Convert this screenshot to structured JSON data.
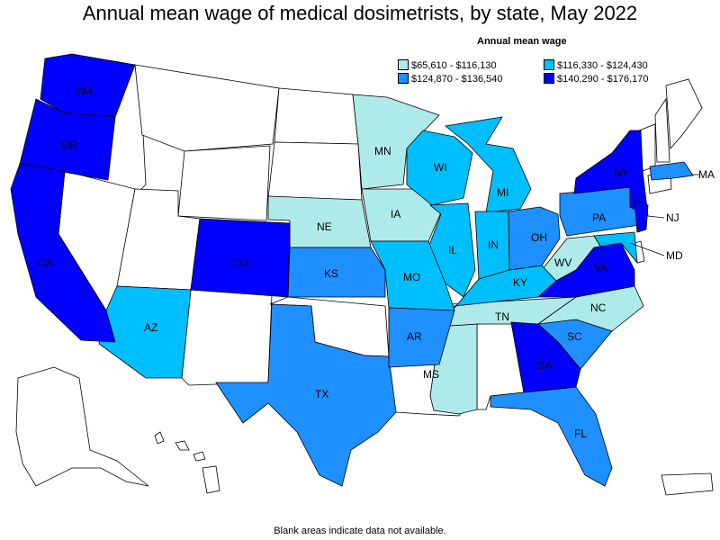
{
  "title": "Annual mean wage of medical dosimetrists, by state, May 2022",
  "legend": {
    "title": "Annual mean wage",
    "items": [
      {
        "label": "$65,610 - $116,130",
        "color": "#aeeaea"
      },
      {
        "label": "$116,330 - $124,430",
        "color": "#00bfff"
      },
      {
        "label": "$124,870 - $136,540",
        "color": "#1e90ff"
      },
      {
        "label": "$140,290 - $176,170",
        "color": "#0000ff"
      }
    ]
  },
  "footer": "Blank areas indicate data not available.",
  "states": {
    "WA": {
      "label": "WA",
      "tier": 3
    },
    "OR": {
      "label": "OR",
      "tier": 3
    },
    "CA": {
      "label": "CA",
      "tier": 3
    },
    "CO": {
      "label": "CO",
      "tier": 3
    },
    "NY": {
      "label": "NY",
      "tier": 3
    },
    "NJ": {
      "label": "NJ",
      "tier": 3
    },
    "GA": {
      "label": "GA",
      "tier": 3
    },
    "VA": {
      "label": "VA",
      "tier": 3
    },
    "TX": {
      "label": "TX",
      "tier": 2
    },
    "KS": {
      "label": "KS",
      "tier": 2
    },
    "AR": {
      "label": "AR",
      "tier": 2
    },
    "OH": {
      "label": "OH",
      "tier": 2
    },
    "PA": {
      "label": "PA",
      "tier": 2
    },
    "SC": {
      "label": "SC",
      "tier": 2
    },
    "FL": {
      "label": "FL",
      "tier": 2
    },
    "MA": {
      "label": "MA",
      "tier": 2
    },
    "AZ": {
      "label": "AZ",
      "tier": 1
    },
    "WI": {
      "label": "WI",
      "tier": 1
    },
    "MI": {
      "label": "MI",
      "tier": 1
    },
    "IL": {
      "label": "IL",
      "tier": 1
    },
    "IN": {
      "label": "IN",
      "tier": 1
    },
    "MO": {
      "label": "MO",
      "tier": 1
    },
    "KY": {
      "label": "KY",
      "tier": 1
    },
    "MD": {
      "label": "MD",
      "tier": 1
    },
    "MN": {
      "label": "MN",
      "tier": 0
    },
    "IA": {
      "label": "IA",
      "tier": 0
    },
    "NE": {
      "label": "NE",
      "tier": 0
    },
    "MS": {
      "label": "MS",
      "tier": 0
    },
    "TN": {
      "label": "TN",
      "tier": 0
    },
    "NC": {
      "label": "NC",
      "tier": 0
    },
    "WV": {
      "label": "WV",
      "tier": 0
    }
  }
}
